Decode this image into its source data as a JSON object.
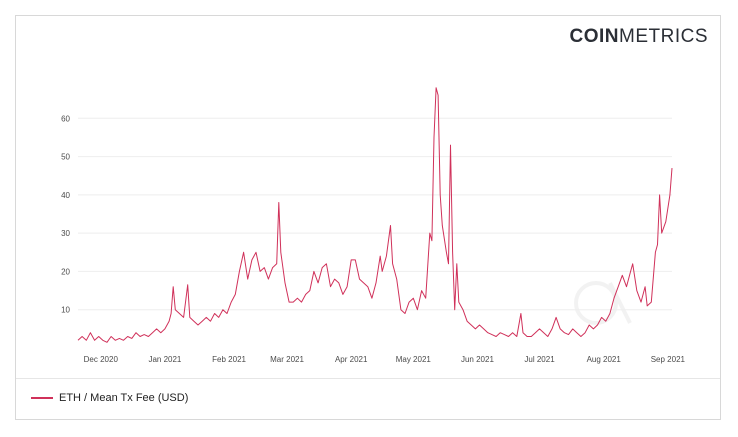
{
  "logo": {
    "bold": "COIN",
    "light": "METRICS"
  },
  "chart_data": {
    "type": "line",
    "title": "",
    "xlabel": "",
    "ylabel": "",
    "ylim": [
      0,
      70
    ],
    "y_ticks": [
      10,
      20,
      30,
      40,
      50,
      60
    ],
    "x_ticks": [
      {
        "label": "Dec 2020",
        "date": "2020-12-01"
      },
      {
        "label": "Jan 2021",
        "date": "2021-01-01"
      },
      {
        "label": "Feb 2021",
        "date": "2021-02-01"
      },
      {
        "label": "Mar 2021",
        "date": "2021-03-01"
      },
      {
        "label": "Apr 2021",
        "date": "2021-04-01"
      },
      {
        "label": "May 2021",
        "date": "2021-05-01"
      },
      {
        "label": "Jun 2021",
        "date": "2021-06-01"
      },
      {
        "label": "Jul 2021",
        "date": "2021-07-01"
      },
      {
        "label": "Aug 2021",
        "date": "2021-08-01"
      },
      {
        "label": "Sep 2021",
        "date": "2021-09-01"
      }
    ],
    "grid": true,
    "legend_position": "bottom-left",
    "color": "#d0315a",
    "series": [
      {
        "name": "ETH / Mean Tx Fee (USD)",
        "points": [
          [
            "2020-11-20",
            2
          ],
          [
            "2020-11-22",
            3
          ],
          [
            "2020-11-24",
            2
          ],
          [
            "2020-11-26",
            4
          ],
          [
            "2020-11-28",
            2
          ],
          [
            "2020-11-30",
            3
          ],
          [
            "2020-12-02",
            2
          ],
          [
            "2020-12-04",
            1.5
          ],
          [
            "2020-12-06",
            3
          ],
          [
            "2020-12-08",
            2
          ],
          [
            "2020-12-10",
            2.5
          ],
          [
            "2020-12-12",
            2
          ],
          [
            "2020-12-14",
            3
          ],
          [
            "2020-12-16",
            2.5
          ],
          [
            "2020-12-18",
            4
          ],
          [
            "2020-12-20",
            3
          ],
          [
            "2020-12-22",
            3.5
          ],
          [
            "2020-12-24",
            3
          ],
          [
            "2020-12-26",
            4
          ],
          [
            "2020-12-28",
            5
          ],
          [
            "2020-12-30",
            4
          ],
          [
            "2021-01-01",
            5
          ],
          [
            "2021-01-03",
            7
          ],
          [
            "2021-01-04",
            9
          ],
          [
            "2021-01-05",
            16
          ],
          [
            "2021-01-06",
            10
          ],
          [
            "2021-01-08",
            9
          ],
          [
            "2021-01-10",
            8
          ],
          [
            "2021-01-12",
            16.5
          ],
          [
            "2021-01-13",
            8
          ],
          [
            "2021-01-15",
            7
          ],
          [
            "2021-01-17",
            6
          ],
          [
            "2021-01-19",
            7
          ],
          [
            "2021-01-21",
            8
          ],
          [
            "2021-01-23",
            7
          ],
          [
            "2021-01-25",
            9
          ],
          [
            "2021-01-27",
            8
          ],
          [
            "2021-01-29",
            10
          ],
          [
            "2021-01-31",
            9
          ],
          [
            "2021-02-02",
            12
          ],
          [
            "2021-02-04",
            14
          ],
          [
            "2021-02-06",
            20
          ],
          [
            "2021-02-08",
            25
          ],
          [
            "2021-02-10",
            18
          ],
          [
            "2021-02-12",
            23
          ],
          [
            "2021-02-14",
            25
          ],
          [
            "2021-02-16",
            20
          ],
          [
            "2021-02-18",
            21
          ],
          [
            "2021-02-20",
            18
          ],
          [
            "2021-02-22",
            21
          ],
          [
            "2021-02-24",
            22
          ],
          [
            "2021-02-25",
            38
          ],
          [
            "2021-02-26",
            25
          ],
          [
            "2021-02-28",
            17
          ],
          [
            "2021-03-02",
            12
          ],
          [
            "2021-03-04",
            12
          ],
          [
            "2021-03-06",
            13
          ],
          [
            "2021-03-08",
            12
          ],
          [
            "2021-03-10",
            14
          ],
          [
            "2021-03-12",
            15
          ],
          [
            "2021-03-14",
            20
          ],
          [
            "2021-03-16",
            17
          ],
          [
            "2021-03-18",
            21
          ],
          [
            "2021-03-20",
            22
          ],
          [
            "2021-03-22",
            16
          ],
          [
            "2021-03-24",
            18
          ],
          [
            "2021-03-26",
            17
          ],
          [
            "2021-03-28",
            14
          ],
          [
            "2021-03-30",
            16
          ],
          [
            "2021-04-01",
            23
          ],
          [
            "2021-04-03",
            23
          ],
          [
            "2021-04-05",
            18
          ],
          [
            "2021-04-07",
            17
          ],
          [
            "2021-04-09",
            16
          ],
          [
            "2021-04-11",
            13
          ],
          [
            "2021-04-13",
            17
          ],
          [
            "2021-04-15",
            24
          ],
          [
            "2021-04-16",
            20
          ],
          [
            "2021-04-18",
            24
          ],
          [
            "2021-04-20",
            32
          ],
          [
            "2021-04-21",
            22
          ],
          [
            "2021-04-23",
            18
          ],
          [
            "2021-04-25",
            10
          ],
          [
            "2021-04-27",
            9
          ],
          [
            "2021-04-29",
            12
          ],
          [
            "2021-05-01",
            13
          ],
          [
            "2021-05-03",
            10
          ],
          [
            "2021-05-05",
            15
          ],
          [
            "2021-05-07",
            13
          ],
          [
            "2021-05-09",
            30
          ],
          [
            "2021-05-10",
            28
          ],
          [
            "2021-05-11",
            55
          ],
          [
            "2021-05-12",
            68
          ],
          [
            "2021-05-13",
            66
          ],
          [
            "2021-05-14",
            40
          ],
          [
            "2021-05-15",
            32
          ],
          [
            "2021-05-17",
            25
          ],
          [
            "2021-05-18",
            22
          ],
          [
            "2021-05-19",
            53
          ],
          [
            "2021-05-20",
            25
          ],
          [
            "2021-05-21",
            10
          ],
          [
            "2021-05-22",
            22
          ],
          [
            "2021-05-23",
            12
          ],
          [
            "2021-05-25",
            10
          ],
          [
            "2021-05-27",
            7
          ],
          [
            "2021-05-29",
            6
          ],
          [
            "2021-05-31",
            5
          ],
          [
            "2021-06-02",
            6
          ],
          [
            "2021-06-04",
            5
          ],
          [
            "2021-06-06",
            4
          ],
          [
            "2021-06-08",
            3.5
          ],
          [
            "2021-06-10",
            3
          ],
          [
            "2021-06-12",
            4
          ],
          [
            "2021-06-14",
            3.5
          ],
          [
            "2021-06-16",
            3
          ],
          [
            "2021-06-18",
            4
          ],
          [
            "2021-06-20",
            3
          ],
          [
            "2021-06-22",
            9
          ],
          [
            "2021-06-23",
            4
          ],
          [
            "2021-06-25",
            3
          ],
          [
            "2021-06-27",
            3
          ],
          [
            "2021-06-29",
            4
          ],
          [
            "2021-07-01",
            5
          ],
          [
            "2021-07-03",
            4
          ],
          [
            "2021-07-05",
            3
          ],
          [
            "2021-07-07",
            5
          ],
          [
            "2021-07-09",
            8
          ],
          [
            "2021-07-11",
            5
          ],
          [
            "2021-07-13",
            4
          ],
          [
            "2021-07-15",
            3.5
          ],
          [
            "2021-07-17",
            5
          ],
          [
            "2021-07-19",
            4
          ],
          [
            "2021-07-21",
            3
          ],
          [
            "2021-07-23",
            4
          ],
          [
            "2021-07-25",
            6
          ],
          [
            "2021-07-27",
            5
          ],
          [
            "2021-07-29",
            6
          ],
          [
            "2021-07-31",
            8
          ],
          [
            "2021-08-02",
            7
          ],
          [
            "2021-08-04",
            9
          ],
          [
            "2021-08-06",
            13
          ],
          [
            "2021-08-08",
            16
          ],
          [
            "2021-08-10",
            19
          ],
          [
            "2021-08-12",
            16
          ],
          [
            "2021-08-14",
            20
          ],
          [
            "2021-08-15",
            22
          ],
          [
            "2021-08-17",
            15
          ],
          [
            "2021-08-19",
            12
          ],
          [
            "2021-08-21",
            16
          ],
          [
            "2021-08-22",
            11
          ],
          [
            "2021-08-24",
            12
          ],
          [
            "2021-08-26",
            25
          ],
          [
            "2021-08-27",
            27
          ],
          [
            "2021-08-28",
            40
          ],
          [
            "2021-08-29",
            30
          ],
          [
            "2021-08-31",
            33
          ],
          [
            "2021-09-02",
            40
          ],
          [
            "2021-09-03",
            47
          ]
        ]
      }
    ]
  }
}
